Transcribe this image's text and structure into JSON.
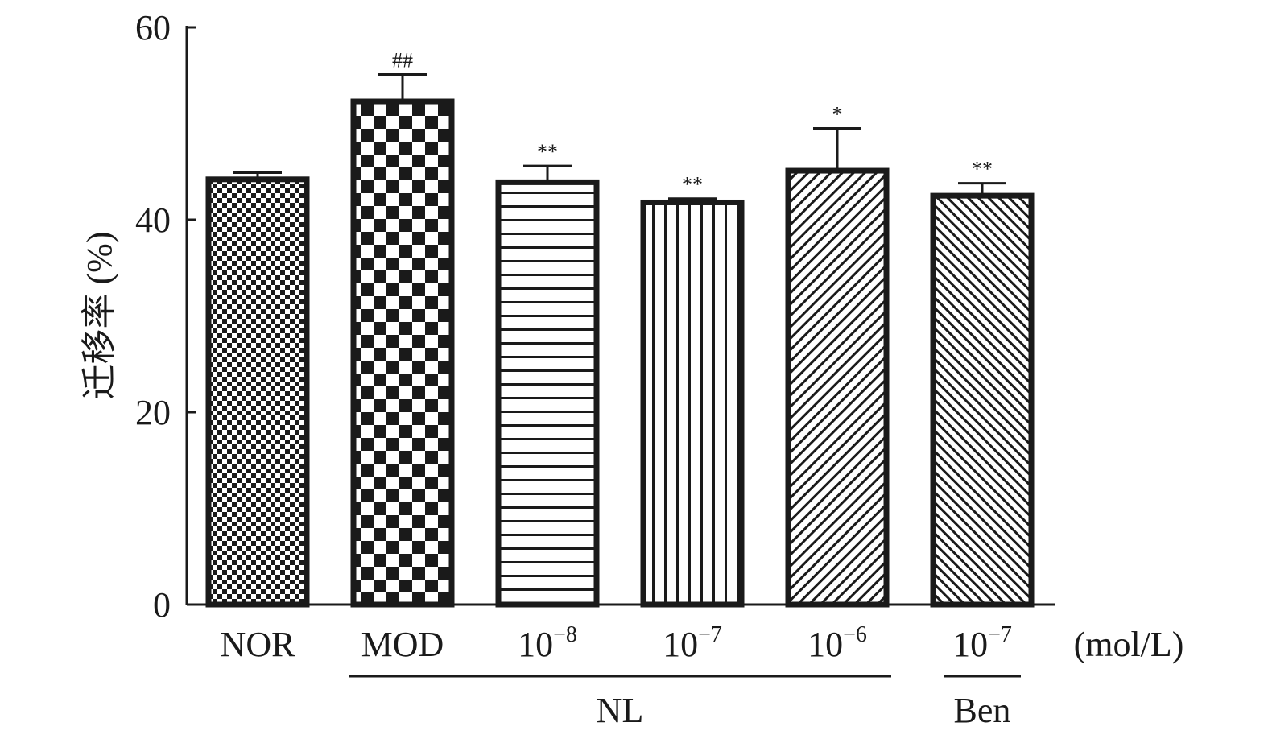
{
  "chart_data": {
    "type": "bar",
    "title": "",
    "ylabel": "迁移率 (%)",
    "ylim": [
      0,
      60
    ],
    "yticks": [
      0,
      20,
      40,
      60
    ],
    "unit_label": "(mol/L)",
    "bars": [
      {
        "label_main": "NOR",
        "label_exp": "",
        "value": 44.2,
        "error": 0.7,
        "sig": "",
        "pattern": "fine-checker"
      },
      {
        "label_main": "MOD",
        "label_exp": "",
        "value": 52.3,
        "error": 2.8,
        "sig": "##",
        "pattern": "coarse-checker"
      },
      {
        "label_main": "10",
        "label_exp": "−8",
        "value": 43.9,
        "error": 1.7,
        "sig": "**",
        "pattern": "horizontal-lines"
      },
      {
        "label_main": "10",
        "label_exp": "−7",
        "value": 41.8,
        "error": 0.4,
        "sig": "**",
        "pattern": "vertical-lines"
      },
      {
        "label_main": "10",
        "label_exp": "−6",
        "value": 45.1,
        "error": 4.4,
        "sig": "*",
        "pattern": "diagonal-lines"
      },
      {
        "label_main": "10",
        "label_exp": "−7",
        "value": 42.5,
        "error": 1.3,
        "sig": "**",
        "pattern": "diagonal-lines-fine"
      }
    ],
    "groups": [
      {
        "label": "NL",
        "from_bar": 1,
        "to_bar": 4
      },
      {
        "label": "Ben",
        "from_bar": 5,
        "to_bar": 5
      }
    ]
  }
}
